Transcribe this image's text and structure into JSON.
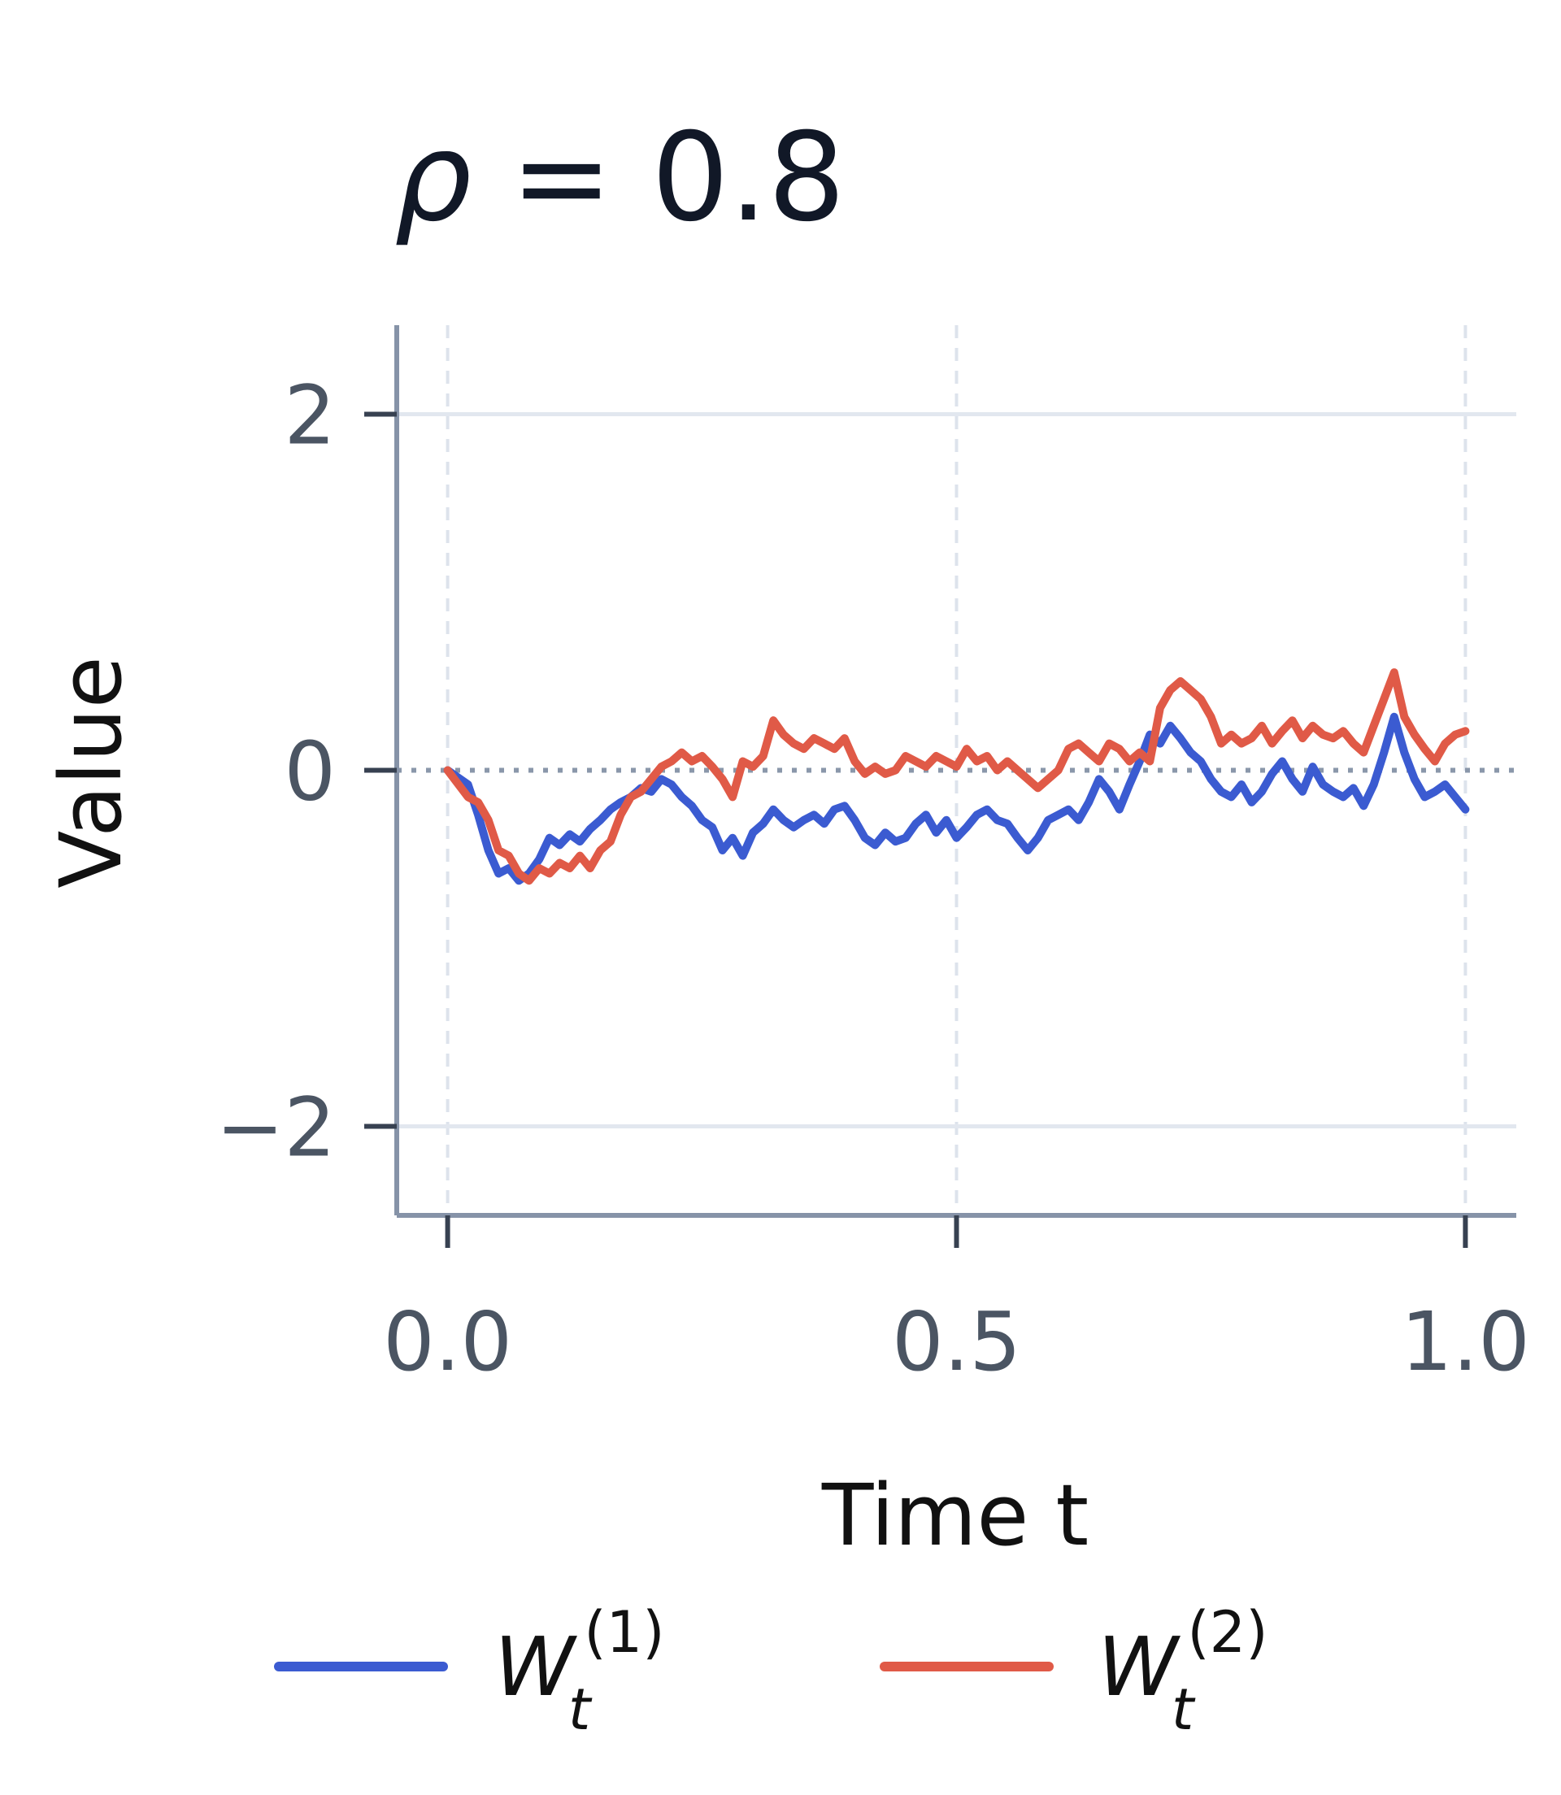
{
  "chart_data": {
    "type": "line",
    "title_parts": {
      "symbol": "ρ",
      "rest": " = 0.8"
    },
    "xlabel": "Time t",
    "ylabel": "Value",
    "xlim": [
      -0.05,
      1.05
    ],
    "ylim": [
      -2.5,
      2.5
    ],
    "xticks": [
      0.0,
      0.5,
      1.0
    ],
    "xtick_labels": [
      "0.0",
      "0.5",
      "1.0"
    ],
    "yticks": [
      -2,
      0,
      2
    ],
    "ytick_labels": [
      "−2",
      "0",
      "2"
    ],
    "grid": true,
    "zero_line": true,
    "legend_position": "bottom",
    "series": [
      {
        "label": {
          "base": "W",
          "sub": "t",
          "sup": "(1)"
        },
        "color": "#3b5bd1",
        "x": [
          0.0,
          0.02,
          0.03,
          0.04,
          0.05,
          0.06,
          0.07,
          0.08,
          0.09,
          0.1,
          0.11,
          0.12,
          0.13,
          0.14,
          0.15,
          0.16,
          0.17,
          0.18,
          0.19,
          0.2,
          0.21,
          0.22,
          0.23,
          0.24,
          0.25,
          0.26,
          0.27,
          0.28,
          0.29,
          0.3,
          0.31,
          0.32,
          0.33,
          0.34,
          0.35,
          0.36,
          0.37,
          0.38,
          0.39,
          0.4,
          0.41,
          0.42,
          0.43,
          0.44,
          0.45,
          0.46,
          0.47,
          0.48,
          0.49,
          0.5,
          0.51,
          0.52,
          0.53,
          0.54,
          0.55,
          0.56,
          0.57,
          0.58,
          0.59,
          0.6,
          0.61,
          0.62,
          0.63,
          0.64,
          0.65,
          0.66,
          0.67,
          0.68,
          0.69,
          0.7,
          0.71,
          0.72,
          0.73,
          0.74,
          0.75,
          0.76,
          0.77,
          0.78,
          0.79,
          0.8,
          0.81,
          0.82,
          0.83,
          0.84,
          0.85,
          0.86,
          0.87,
          0.88,
          0.89,
          0.9,
          0.91,
          0.92,
          0.93,
          0.94,
          0.95,
          0.96,
          0.97,
          0.98,
          0.99,
          1.0
        ],
        "y": [
          0.0,
          -0.08,
          -0.25,
          -0.45,
          -0.58,
          -0.55,
          -0.62,
          -0.58,
          -0.5,
          -0.38,
          -0.42,
          -0.36,
          -0.4,
          -0.33,
          -0.28,
          -0.22,
          -0.18,
          -0.15,
          -0.1,
          -0.12,
          -0.05,
          -0.08,
          -0.15,
          -0.2,
          -0.28,
          -0.32,
          -0.45,
          -0.38,
          -0.48,
          -0.35,
          -0.3,
          -0.22,
          -0.28,
          -0.32,
          -0.28,
          -0.25,
          -0.3,
          -0.22,
          -0.2,
          -0.28,
          -0.38,
          -0.42,
          -0.35,
          -0.4,
          -0.38,
          -0.3,
          -0.25,
          -0.35,
          -0.28,
          -0.38,
          -0.32,
          -0.25,
          -0.22,
          -0.28,
          -0.3,
          -0.38,
          -0.45,
          -0.38,
          -0.28,
          -0.25,
          -0.22,
          -0.28,
          -0.18,
          -0.05,
          -0.12,
          -0.22,
          -0.08,
          0.05,
          0.2,
          0.15,
          0.25,
          0.18,
          0.1,
          0.05,
          -0.05,
          -0.12,
          -0.15,
          -0.08,
          -0.18,
          -0.12,
          -0.02,
          0.05,
          -0.05,
          -0.12,
          0.02,
          -0.08,
          -0.12,
          -0.15,
          -0.1,
          -0.2,
          -0.08,
          0.1,
          0.3,
          0.1,
          -0.05,
          -0.15,
          -0.12,
          -0.08,
          -0.15,
          -0.22
        ]
      },
      {
        "label": {
          "base": "W",
          "sub": "t",
          "sup": "(2)"
        },
        "color": "#e05a47",
        "x": [
          0.0,
          0.02,
          0.03,
          0.04,
          0.05,
          0.06,
          0.07,
          0.08,
          0.09,
          0.1,
          0.11,
          0.12,
          0.13,
          0.14,
          0.15,
          0.16,
          0.17,
          0.18,
          0.19,
          0.2,
          0.21,
          0.22,
          0.23,
          0.24,
          0.25,
          0.26,
          0.27,
          0.28,
          0.29,
          0.3,
          0.31,
          0.32,
          0.33,
          0.34,
          0.35,
          0.36,
          0.37,
          0.38,
          0.39,
          0.4,
          0.41,
          0.42,
          0.43,
          0.44,
          0.45,
          0.46,
          0.47,
          0.48,
          0.49,
          0.5,
          0.51,
          0.52,
          0.53,
          0.54,
          0.55,
          0.56,
          0.57,
          0.58,
          0.59,
          0.6,
          0.61,
          0.62,
          0.63,
          0.64,
          0.65,
          0.66,
          0.67,
          0.68,
          0.69,
          0.7,
          0.71,
          0.72,
          0.73,
          0.74,
          0.75,
          0.76,
          0.77,
          0.78,
          0.79,
          0.8,
          0.81,
          0.82,
          0.83,
          0.84,
          0.85,
          0.86,
          0.87,
          0.88,
          0.89,
          0.9,
          0.91,
          0.92,
          0.93,
          0.94,
          0.95,
          0.96,
          0.97,
          0.98,
          0.99,
          1.0
        ],
        "y": [
          0.0,
          -0.15,
          -0.18,
          -0.28,
          -0.45,
          -0.48,
          -0.58,
          -0.62,
          -0.55,
          -0.58,
          -0.52,
          -0.55,
          -0.48,
          -0.55,
          -0.45,
          -0.4,
          -0.25,
          -0.15,
          -0.12,
          -0.05,
          0.02,
          0.05,
          0.1,
          0.05,
          0.08,
          0.02,
          -0.05,
          -0.15,
          0.05,
          0.02,
          0.08,
          0.28,
          0.2,
          0.15,
          0.12,
          0.18,
          0.15,
          0.12,
          0.18,
          0.05,
          -0.02,
          0.02,
          -0.02,
          0.0,
          0.08,
          0.05,
          0.02,
          0.08,
          0.05,
          0.02,
          0.12,
          0.05,
          0.08,
          0.0,
          0.05,
          0.0,
          -0.05,
          -0.1,
          -0.05,
          0.0,
          0.12,
          0.15,
          0.1,
          0.05,
          0.15,
          0.12,
          0.05,
          0.1,
          0.05,
          0.35,
          0.45,
          0.5,
          0.45,
          0.4,
          0.3,
          0.15,
          0.2,
          0.15,
          0.18,
          0.25,
          0.15,
          0.22,
          0.28,
          0.18,
          0.25,
          0.2,
          0.18,
          0.22,
          0.15,
          0.1,
          0.25,
          0.4,
          0.55,
          0.3,
          0.2,
          0.12,
          0.05,
          0.15,
          0.2,
          0.22
        ]
      }
    ]
  }
}
